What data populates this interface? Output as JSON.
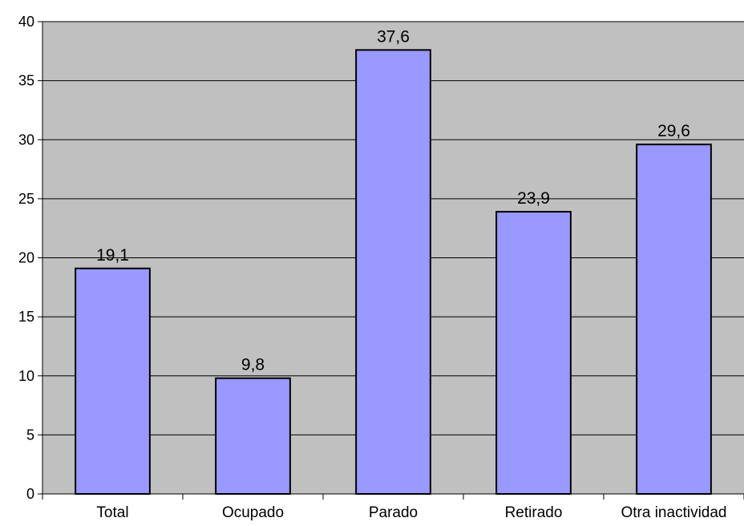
{
  "chart_data": {
    "type": "bar",
    "title": "",
    "xlabel": "",
    "ylabel": "",
    "categories": [
      "Total",
      "Ocupado",
      "Parado",
      "Retirado",
      "Otra inactividad"
    ],
    "values": [
      19.1,
      9.8,
      37.6,
      23.9,
      29.6
    ],
    "value_labels": [
      "19,1",
      "9,8",
      "37,6",
      "23,9",
      "29,6"
    ],
    "ylim": [
      0,
      40
    ],
    "yticks": [
      0,
      5,
      10,
      15,
      20,
      25,
      30,
      35,
      40
    ],
    "grid": true,
    "legend": "none",
    "colors": {
      "plot_background": "#c0c0c0",
      "bar_fill": "#9999ff",
      "bar_stroke": "#000000",
      "gridline": "#000000"
    }
  }
}
